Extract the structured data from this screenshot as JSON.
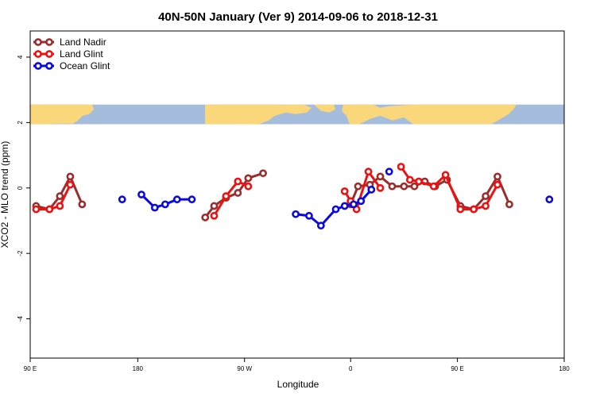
{
  "chart_data": {
    "type": "line",
    "title": "40N-50N January (Ver 9)   2014-09-06 to 2018-12-31",
    "xlabel": "Longitude",
    "ylabel": "XCO2 - MLO trend (ppm)",
    "xlim": [
      0,
      360
    ],
    "ylim": [
      -5.2,
      4.8
    ],
    "x_ticks": [
      {
        "value": 0,
        "label": "90 E"
      },
      {
        "value": 72.5,
        "label": "180"
      },
      {
        "value": 144.5,
        "label": "90 W"
      },
      {
        "value": 216,
        "label": "0"
      },
      {
        "value": 288,
        "label": "90 E"
      },
      {
        "value": 360,
        "label": "180"
      }
    ],
    "y_ticks": [
      {
        "value": -4,
        "label": "-4"
      },
      {
        "value": -2,
        "label": "-2"
      },
      {
        "value": 0,
        "label": "0"
      },
      {
        "value": 2,
        "label": "2"
      },
      {
        "value": 4,
        "label": "4"
      }
    ],
    "legend_position": "top-left",
    "map_strip": {
      "y_range": [
        1.95,
        2.55
      ],
      "land_color": "#f9d77a",
      "ocean_color": "#a6bcdc"
    },
    "series": [
      {
        "name": "Land Nadir",
        "color": "#9b2d2d",
        "segments": [
          [
            [
              4,
              -0.55
            ],
            [
              13,
              -0.65
            ],
            [
              20,
              -0.25
            ],
            [
              27,
              0.35
            ],
            [
              35,
              -0.5
            ]
          ],
          [
            [
              118,
              -0.9
            ],
            [
              124,
              -0.55
            ],
            [
              132,
              -0.3
            ],
            [
              140,
              -0.15
            ],
            [
              147,
              0.3
            ],
            [
              157,
              0.45
            ]
          ],
          [
            [
              216,
              -0.5
            ],
            [
              221,
              0.05
            ],
            [
              229,
              0.1
            ],
            [
              236,
              0.35
            ],
            [
              244,
              0.05
            ],
            [
              252,
              0.05
            ],
            [
              259,
              0.05
            ],
            [
              266,
              0.2
            ],
            [
              273,
              0.05
            ],
            [
              281,
              0.25
            ],
            [
              290,
              -0.55
            ],
            [
              299,
              -0.65
            ],
            [
              307,
              -0.25
            ],
            [
              315,
              0.35
            ],
            [
              323,
              -0.5
            ]
          ]
        ]
      },
      {
        "name": "Land Glint",
        "color": "#ee1111",
        "segments": [
          [
            [
              4,
              -0.65
            ],
            [
              13,
              -0.65
            ],
            [
              20,
              -0.55
            ],
            [
              27,
              0.1
            ]
          ],
          [
            [
              124,
              -0.85
            ],
            [
              132,
              -0.25
            ],
            [
              140,
              0.2
            ],
            [
              147,
              0.05
            ]
          ],
          [
            [
              212,
              -0.1
            ],
            [
              216,
              -0.4
            ],
            [
              220,
              -0.65
            ],
            [
              228,
              0.5
            ],
            [
              236,
              0.0
            ]
          ],
          [
            [
              250,
              0.65
            ],
            [
              256,
              0.25
            ],
            [
              262,
              0.2
            ],
            [
              272,
              0.05
            ],
            [
              280,
              0.4
            ],
            [
              290,
              -0.65
            ],
            [
              299,
              -0.65
            ],
            [
              307,
              -0.55
            ],
            [
              315,
              0.1
            ]
          ]
        ]
      },
      {
        "name": "Ocean Glint",
        "color": "#0a0ae0",
        "segments": [
          [
            [
              62,
              -0.35
            ]
          ],
          [
            [
              75,
              -0.2
            ],
            [
              84,
              -0.6
            ],
            [
              91,
              -0.5
            ],
            [
              99,
              -0.35
            ],
            [
              109,
              -0.35
            ]
          ],
          [
            [
              179,
              -0.8
            ],
            [
              188,
              -0.85
            ],
            [
              196,
              -1.15
            ],
            [
              206,
              -0.65
            ],
            [
              212,
              -0.55
            ],
            [
              218,
              -0.5
            ],
            [
              223,
              -0.4
            ],
            [
              230,
              -0.05
            ]
          ],
          [
            [
              242,
              0.5
            ]
          ],
          [
            [
              350,
              -0.35
            ]
          ]
        ]
      }
    ],
    "legend": [
      {
        "label": "Land Nadir",
        "color": "#9b2d2d"
      },
      {
        "label": "Land Glint",
        "color": "#ee1111"
      },
      {
        "label": "Ocean Glint",
        "color": "#0a0ae0"
      }
    ]
  }
}
